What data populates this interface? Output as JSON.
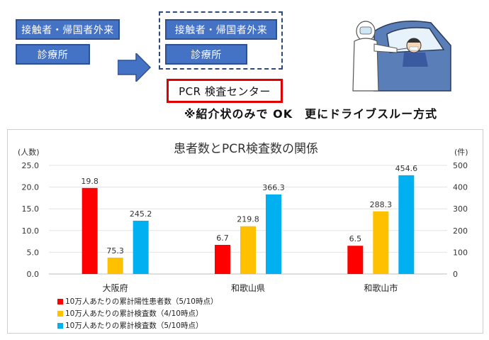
{
  "flow": {
    "left_boxes": [
      "接触者・帰国者外来",
      "診療所"
    ],
    "right_boxes": [
      "接触者・帰国者外来",
      "診療所"
    ],
    "pcr_center": "PCR 検査センター",
    "note": "※紹介状のみで OK　更にドライブスルー方式"
  },
  "colors": {
    "box_fill": "#4472c4",
    "accent_red": "#e00000",
    "series_red": "#ff0000",
    "series_yellow": "#ffc000",
    "series_blue": "#00b0f0"
  },
  "chart_data": {
    "type": "bar",
    "title": "患者数とPCR検査数の関係",
    "categories": [
      "大阪府",
      "和歌山県",
      "和歌山市"
    ],
    "ylabel_left": "(人数)",
    "ylabel_right": "(件)",
    "ylim_left": [
      0,
      25
    ],
    "ylim_right": [
      0,
      500
    ],
    "yticks_left": [
      "0.0",
      "5.0",
      "10.0",
      "15.0",
      "20.0",
      "25.0"
    ],
    "yticks_right": [
      "0",
      "100",
      "200",
      "300",
      "400",
      "500"
    ],
    "grid": true,
    "legend_position": "bottom-left",
    "series": [
      {
        "name": "10万人あたりの累計陽性患者数（5/10時点）",
        "axis": "left",
        "color": "#ff0000",
        "values": [
          19.8,
          6.7,
          6.5
        ],
        "labels": [
          "19.8",
          "6.7",
          "6.5"
        ]
      },
      {
        "name": "10万人あたりの累計検査数（4/10時点）",
        "axis": "right",
        "color": "#ffc000",
        "values": [
          75.3,
          219.8,
          288.3
        ],
        "labels": [
          "75.3",
          "219.8",
          "288.3"
        ]
      },
      {
        "name": "10万人あたりの累計検査数（5/10時点）",
        "axis": "right",
        "color": "#00b0f0",
        "values": [
          245.2,
          366.3,
          454.6
        ],
        "labels": [
          "245.2",
          "366.3",
          "454.6"
        ]
      }
    ]
  }
}
